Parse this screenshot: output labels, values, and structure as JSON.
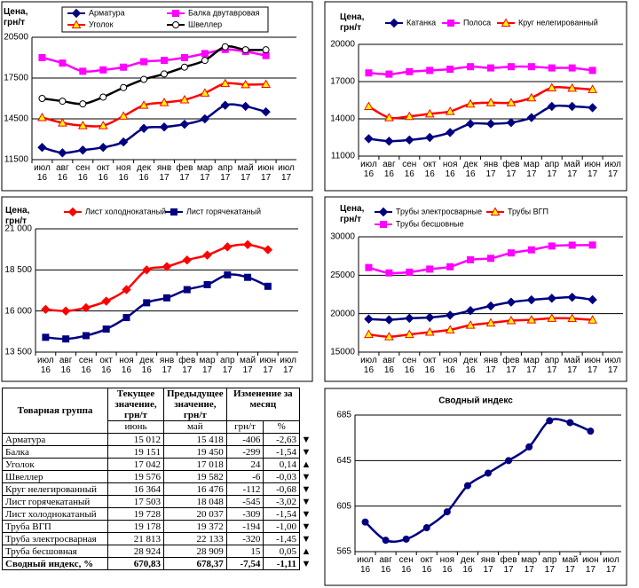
{
  "chart_data": [
    {
      "type": "line",
      "y_label": "Цена, грн/т",
      "categories": [
        "июл 16",
        "авг 16",
        "сен 16",
        "окт 16",
        "ноя 16",
        "дек 16",
        "янв 17",
        "фев 17",
        "мар 17",
        "апр 17",
        "май 17",
        "июн 17",
        "июл 17"
      ],
      "ylim": [
        11500,
        20500
      ],
      "yticks": [
        11500,
        14500,
        17500,
        20500
      ],
      "grid": true,
      "series": [
        {
          "name": "Арматура",
          "color": "#000080",
          "marker": "diamond",
          "marker_fill": "#000080",
          "values": [
            12400,
            12000,
            12200,
            12400,
            12800,
            13800,
            13900,
            14100,
            14500,
            15500,
            15418,
            15012,
            null
          ]
        },
        {
          "name": "Балка двутавровая",
          "color": "#ff00ff",
          "marker": "square",
          "marker_fill": "#ff00ff",
          "values": [
            19000,
            18600,
            18000,
            18100,
            18300,
            18700,
            18800,
            19000,
            19300,
            19600,
            19450,
            19151,
            null
          ]
        },
        {
          "name": "Уголок",
          "color": "#ff0000",
          "marker": "triangle",
          "marker_fill": "#ffff00",
          "values": [
            14600,
            14200,
            14000,
            14000,
            14700,
            15500,
            15700,
            15900,
            16400,
            17100,
            17018,
            17042,
            null
          ]
        },
        {
          "name": "Швеллер",
          "color": "#000000",
          "marker": "circle",
          "marker_fill": "#ffffff",
          "values": [
            16000,
            15800,
            15600,
            16100,
            16800,
            17400,
            17800,
            18300,
            18800,
            19800,
            19582,
            19576,
            null
          ]
        }
      ]
    },
    {
      "type": "line",
      "y_label": "Цена, грн/т",
      "categories": [
        "июл 16",
        "авг 16",
        "сен 16",
        "окт 16",
        "ноя 16",
        "дек 16",
        "янв 17",
        "фев 17",
        "мар 17",
        "апр 17",
        "май 17",
        "июн 17",
        "июл 17"
      ],
      "ylim": [
        11000,
        20000
      ],
      "yticks": [
        11000,
        14000,
        17000,
        20000
      ],
      "grid": true,
      "series": [
        {
          "name": "Катанка",
          "color": "#000080",
          "marker": "diamond",
          "marker_fill": "#000080",
          "values": [
            12400,
            12200,
            12300,
            12500,
            12900,
            13600,
            13600,
            13700,
            14100,
            15000,
            15000,
            14900,
            null
          ]
        },
        {
          "name": "Полоса",
          "color": "#ff00ff",
          "marker": "square",
          "marker_fill": "#ff00ff",
          "values": [
            17700,
            17600,
            17800,
            17900,
            18000,
            18200,
            18100,
            18200,
            18200,
            18100,
            18100,
            17900,
            null
          ]
        },
        {
          "name": "Круг нелегированный",
          "color": "#ff0000",
          "marker": "triangle",
          "marker_fill": "#ffff00",
          "values": [
            15000,
            14100,
            14200,
            14400,
            14600,
            15200,
            15300,
            15300,
            15700,
            16500,
            16476,
            16364,
            null
          ]
        }
      ]
    },
    {
      "type": "line",
      "y_label": "Цена, грн/т",
      "categories": [
        "июл 16",
        "авг 16",
        "сен 16",
        "окт 16",
        "ноя 16",
        "дек 16",
        "янв 17",
        "фев 17",
        "мар 17",
        "апр 17",
        "май 17",
        "июн 17",
        "июл 17"
      ],
      "ylim": [
        13500,
        21000
      ],
      "yticks": [
        {
          "value": 13500,
          "label": "13 500"
        },
        {
          "value": 16000,
          "label": "16 000"
        },
        {
          "value": 18500,
          "label": "18 500"
        },
        {
          "value": 21000,
          "label": "21 000"
        }
      ],
      "grid": true,
      "series": [
        {
          "name": "Лист холоднокатаный",
          "color": "#ff0000",
          "marker": "diamond",
          "marker_fill": "#ff0000",
          "values": [
            16100,
            16000,
            16200,
            16600,
            17300,
            18500,
            18700,
            19100,
            19400,
            19900,
            20037,
            19728,
            null
          ]
        },
        {
          "name": "Лист горячекатаный",
          "color": "#000080",
          "marker": "square",
          "marker_fill": "#000080",
          "values": [
            14400,
            14300,
            14500,
            14900,
            15600,
            16500,
            16800,
            17300,
            17600,
            18200,
            18048,
            17503,
            null
          ]
        }
      ]
    },
    {
      "type": "line",
      "y_label": "Цена, грн/т",
      "categories": [
        "июл 16",
        "авг 16",
        "сен 16",
        "окт 16",
        "ноя 16",
        "дек 16",
        "янв 17",
        "фев 17",
        "мар 17",
        "апр 17",
        "май 17",
        "июн 17",
        "июл 17"
      ],
      "ylim": [
        15000,
        30000
      ],
      "yticks": [
        15000,
        20000,
        25000,
        30000
      ],
      "grid": true,
      "series": [
        {
          "name": "Трубы электросварные",
          "color": "#000080",
          "marker": "diamond",
          "marker_fill": "#000080",
          "values": [
            19300,
            19200,
            19400,
            19500,
            19800,
            20400,
            21000,
            21500,
            21800,
            22000,
            22133,
            21813,
            null
          ]
        },
        {
          "name": "Трубы ВГП",
          "color": "#ff0000",
          "marker": "triangle",
          "marker_fill": "#ffff00",
          "values": [
            17300,
            17000,
            17300,
            17600,
            17900,
            18500,
            18800,
            19100,
            19200,
            19400,
            19372,
            19178,
            null
          ]
        },
        {
          "name": "Трубы бесшовные",
          "color": "#ff00ff",
          "marker": "square",
          "marker_fill": "#ff00ff",
          "values": [
            26000,
            25300,
            25400,
            25800,
            26100,
            27000,
            27200,
            27900,
            28300,
            28800,
            28909,
            28924,
            null
          ]
        }
      ]
    },
    {
      "type": "line",
      "title": "Сводный индекс",
      "categories": [
        "июл 16",
        "авг 16",
        "сен 16",
        "окт 16",
        "ноя 16",
        "дек 16",
        "янв 17",
        "фев 17",
        "мар 17",
        "апр 17",
        "май 17",
        "июн 17",
        "июл 17"
      ],
      "ylim": [
        565,
        685
      ],
      "yticks": [
        565,
        605,
        645,
        685
      ],
      "grid": true,
      "series": [
        {
          "color": "#000080",
          "marker": "circle",
          "marker_fill": "#000080",
          "values": [
            591,
            575,
            576,
            586,
            600,
            623,
            634,
            645,
            657,
            680,
            678.37,
            670.83,
            null
          ]
        }
      ]
    }
  ],
  "table": {
    "header": {
      "group": "Товарная группа",
      "current": "Текущее значение, грн/т",
      "previous": "Предыдущее значение, грн/т",
      "change": "Изменение за месяц",
      "current_month": "июнь",
      "previous_month": "май",
      "change_abs": "грн/т",
      "change_pct": "%"
    },
    "rows": [
      [
        "Арматура",
        "15 012",
        "15 418",
        "-406",
        "-2,63",
        "▼"
      ],
      [
        "Балка",
        "19 151",
        "19 450",
        "-299",
        "-1,54",
        "▼"
      ],
      [
        "Уголок",
        "17 042",
        "17 018",
        "24",
        "0,14",
        "▲"
      ],
      [
        "Швеллер",
        "19 576",
        "19 582",
        "-6",
        "-0,03",
        "▼"
      ],
      [
        "Круг нелегированный",
        "16 364",
        "16 476",
        "-112",
        "-0,68",
        "▼"
      ],
      [
        "Лист горячекатаный",
        "17 503",
        "18 048",
        "-545",
        "-3,02",
        "▼"
      ],
      [
        "Лист холоднокатаный",
        "19 728",
        "20 037",
        "-309",
        "-1,54",
        "▼"
      ],
      [
        "Труба ВГП",
        "19 178",
        "19 372",
        "-194",
        "-1,00",
        "▼"
      ],
      [
        "Труба электросварная",
        "21 813",
        "22 133",
        "-320",
        "-1,45",
        "▼"
      ],
      [
        "Труба бесшовная",
        "28 924",
        "28 909",
        "15",
        "0,05",
        "▲"
      ],
      [
        "Сводный индекс, %",
        "670,83",
        "678,37",
        "-7,54",
        "-1,11",
        "▼"
      ]
    ]
  }
}
